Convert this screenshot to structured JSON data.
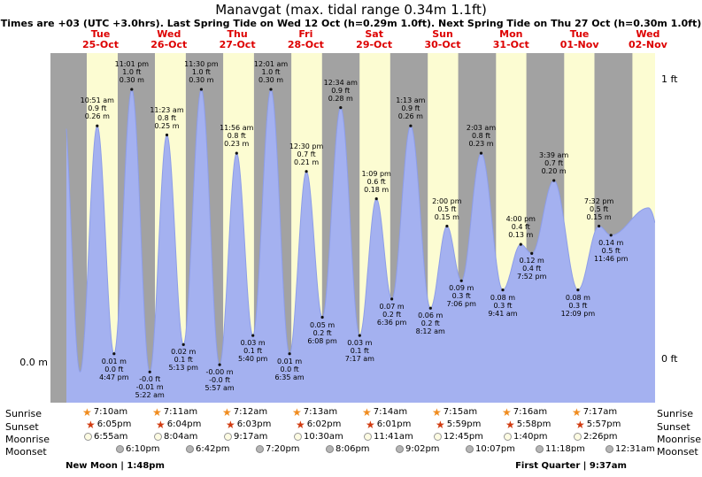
{
  "title": "Manavgat (max. tidal range 0.34m 1.1ft)",
  "subtitle": "Times are +03 (UTC +3.0hrs). Last Spring Tide on Wed 12 Oct (h=0.29m 1.0ft). Next Spring Tide on Thu 27 Oct (h=0.30m 1.0ft)",
  "axis": {
    "zero_m": "0.0 m",
    "zero_ft": "0 ft",
    "one_ft": "1 ft"
  },
  "days": [
    {
      "dow": "Tue",
      "date": "25-Oct"
    },
    {
      "dow": "Wed",
      "date": "26-Oct"
    },
    {
      "dow": "Thu",
      "date": "27-Oct"
    },
    {
      "dow": "Fri",
      "date": "28-Oct"
    },
    {
      "dow": "Sat",
      "date": "29-Oct"
    },
    {
      "dow": "Sun",
      "date": "30-Oct"
    },
    {
      "dow": "Mon",
      "date": "31-Oct"
    },
    {
      "dow": "Tue",
      "date": "01-Nov"
    },
    {
      "dow": "Wed",
      "date": "02-Nov"
    }
  ],
  "chart_data": {
    "type": "area",
    "title": "Manavgat tide height curve",
    "time_axis": "hours since Tue 25-Oct 00:00 (+03)",
    "ylim_m": [
      -0.04,
      0.33
    ],
    "units": {
      "left": "m",
      "right": "ft"
    },
    "colors": {
      "night_band": "#a2a2a2",
      "day_band": "#fcfcd2",
      "tide_fill": "#a4b1f0",
      "tide_stroke": "#8d9de8",
      "annotation": "#000000",
      "day_label": "#dd0000"
    },
    "day_bands_hours": [
      [
        7.17,
        18.08
      ],
      [
        31.18,
        42.07
      ],
      [
        55.2,
        66.05
      ],
      [
        79.22,
        90.03
      ],
      [
        103.23,
        114.02
      ],
      [
        127.25,
        137.98
      ],
      [
        151.27,
        161.97
      ],
      [
        175.28,
        185.95
      ],
      [
        199.3,
        209.93
      ]
    ],
    "extremes": [
      {
        "t": -1.33,
        "m": 0.29,
        "kind": "high",
        "lines": null
      },
      {
        "t": 4.83,
        "m": -0.01,
        "kind": "low",
        "lines": null
      },
      {
        "t": 10.85,
        "m": 0.26,
        "kind": "high",
        "lines": [
          "10:51 am",
          "0.9 ft",
          "0.26 m"
        ]
      },
      {
        "t": 16.78,
        "m": 0.01,
        "kind": "low",
        "lines": [
          "0.01 m",
          "0.0 ft",
          "4:47 pm"
        ]
      },
      {
        "t": 23.02,
        "m": 0.3,
        "kind": "high",
        "lines": [
          "11:01 pm",
          "1.0 ft",
          "0.30 m"
        ]
      },
      {
        "t": 29.37,
        "m": -0.01,
        "kind": "low",
        "lines": [
          "-0.0 ft",
          "-0.01 m",
          "5:22 am"
        ]
      },
      {
        "t": 35.38,
        "m": 0.25,
        "kind": "high",
        "lines": [
          "11:23 am",
          "0.8 ft",
          "0.25 m"
        ]
      },
      {
        "t": 41.22,
        "m": 0.02,
        "kind": "low",
        "lines": [
          "0.02 m",
          "0.1 ft",
          "5:13 pm"
        ]
      },
      {
        "t": 47.5,
        "m": 0.3,
        "kind": "high",
        "lines": [
          "11:30 pm",
          "1.0 ft",
          "0.30 m"
        ]
      },
      {
        "t": 53.95,
        "m": -0.002,
        "kind": "low",
        "lines": [
          "-0.00 m",
          "-0.0 ft",
          "5:57 am"
        ]
      },
      {
        "t": 59.93,
        "m": 0.23,
        "kind": "high",
        "lines": [
          "11:56 am",
          "0.8 ft",
          "0.23 m"
        ]
      },
      {
        "t": 65.67,
        "m": 0.03,
        "kind": "low",
        "lines": [
          "0.03 m",
          "0.1 ft",
          "5:40 pm"
        ]
      },
      {
        "t": 72.02,
        "m": 0.3,
        "kind": "high",
        "lines": [
          "12:01 am",
          "1.0 ft",
          "0.30 m"
        ]
      },
      {
        "t": 78.58,
        "m": 0.01,
        "kind": "low",
        "lines": [
          "0.01 m",
          "0.0 ft",
          "6:35 am"
        ]
      },
      {
        "t": 84.5,
        "m": 0.21,
        "kind": "high",
        "lines": [
          "12:30 pm",
          "0.7 ft",
          "0.21 m"
        ]
      },
      {
        "t": 90.13,
        "m": 0.05,
        "kind": "low",
        "lines": [
          "0.05 m",
          "0.2 ft",
          "6:08 pm"
        ]
      },
      {
        "t": 96.57,
        "m": 0.28,
        "kind": "high",
        "lines": [
          "12:34 am",
          "0.9 ft",
          "0.28 m"
        ]
      },
      {
        "t": 103.28,
        "m": 0.03,
        "kind": "low",
        "lines": [
          "0.03 m",
          "0.1 ft",
          "7:17 am"
        ]
      },
      {
        "t": 109.15,
        "m": 0.18,
        "kind": "high",
        "lines": [
          "1:09 pm",
          "0.6 ft",
          "0.18 m"
        ]
      },
      {
        "t": 114.6,
        "m": 0.07,
        "kind": "low",
        "lines": [
          "0.07 m",
          "0.2 ft",
          "6:36 pm"
        ]
      },
      {
        "t": 121.22,
        "m": 0.26,
        "kind": "high",
        "lines": [
          "1:13 am",
          "0.9 ft",
          "0.26 m"
        ]
      },
      {
        "t": 128.2,
        "m": 0.06,
        "kind": "low",
        "lines": [
          "0.06 m",
          "0.2 ft",
          "8:12 am"
        ]
      },
      {
        "t": 134.0,
        "m": 0.15,
        "kind": "high",
        "lines": [
          "2:00 pm",
          "0.5 ft",
          "0.15 m"
        ]
      },
      {
        "t": 139.1,
        "m": 0.09,
        "kind": "low",
        "lines": [
          "0.09 m",
          "0.3 ft",
          "7:06 pm"
        ]
      },
      {
        "t": 146.05,
        "m": 0.23,
        "kind": "high",
        "lines": [
          "2:03 am",
          "0.8 ft",
          "0.23 m"
        ]
      },
      {
        "t": 153.68,
        "m": 0.08,
        "kind": "low",
        "lines": [
          "0.08 m",
          "0.3 ft",
          "9:41 am"
        ]
      },
      {
        "t": 160.0,
        "m": 0.13,
        "kind": "high",
        "lines": [
          "4:00 pm",
          "0.4 ft",
          "0.13 m"
        ]
      },
      {
        "t": 163.87,
        "m": 0.12,
        "kind": "low",
        "lines": [
          "0.12 m",
          "0.4 ft",
          "7:52 pm"
        ]
      },
      {
        "t": 171.65,
        "m": 0.2,
        "kind": "high",
        "lines": [
          "3:39 am",
          "0.7 ft",
          "0.20 m"
        ]
      },
      {
        "t": 180.15,
        "m": 0.08,
        "kind": "low",
        "lines": [
          "0.08 m",
          "0.3 ft",
          "12:09 pm"
        ]
      },
      {
        "t": 187.53,
        "m": 0.15,
        "kind": "high",
        "lines": [
          "7:32 pm",
          "0.5 ft",
          "0.15 m"
        ]
      },
      {
        "t": 191.77,
        "m": 0.14,
        "kind": "low",
        "lines": [
          "0.14 m",
          "0.5 ft",
          "11:46 pm"
        ]
      },
      {
        "t": 205.0,
        "m": 0.17,
        "kind": "high",
        "lines": null
      },
      {
        "t": 212.0,
        "m": 0.1,
        "kind": "low",
        "lines": null
      }
    ]
  },
  "sun_moon": {
    "sunrise": {
      "label": "Sunrise",
      "times": [
        "7:10am",
        "7:11am",
        "7:12am",
        "7:13am",
        "7:14am",
        "7:15am",
        "7:16am",
        "7:17am"
      ]
    },
    "sunset": {
      "label": "Sunset",
      "times": [
        "6:05pm",
        "6:04pm",
        "6:03pm",
        "6:02pm",
        "6:01pm",
        "5:59pm",
        "5:58pm",
        "5:57pm"
      ]
    },
    "moonrise": {
      "label": "Moonrise",
      "times": [
        "6:55am",
        "8:04am",
        "9:17am",
        "10:30am",
        "11:41am",
        "12:45pm",
        "1:40pm",
        "2:26pm"
      ]
    },
    "moonset": {
      "label": "Moonset",
      "times": [
        "6:10pm",
        "6:42pm",
        "7:20pm",
        "8:06pm",
        "9:02pm",
        "10:07pm",
        "11:18pm",
        "12:31am"
      ]
    }
  },
  "moon_phases": [
    {
      "name": "New Moon",
      "time": "1:48pm"
    },
    {
      "name": "First Quarter",
      "time": "9:37am"
    }
  ]
}
